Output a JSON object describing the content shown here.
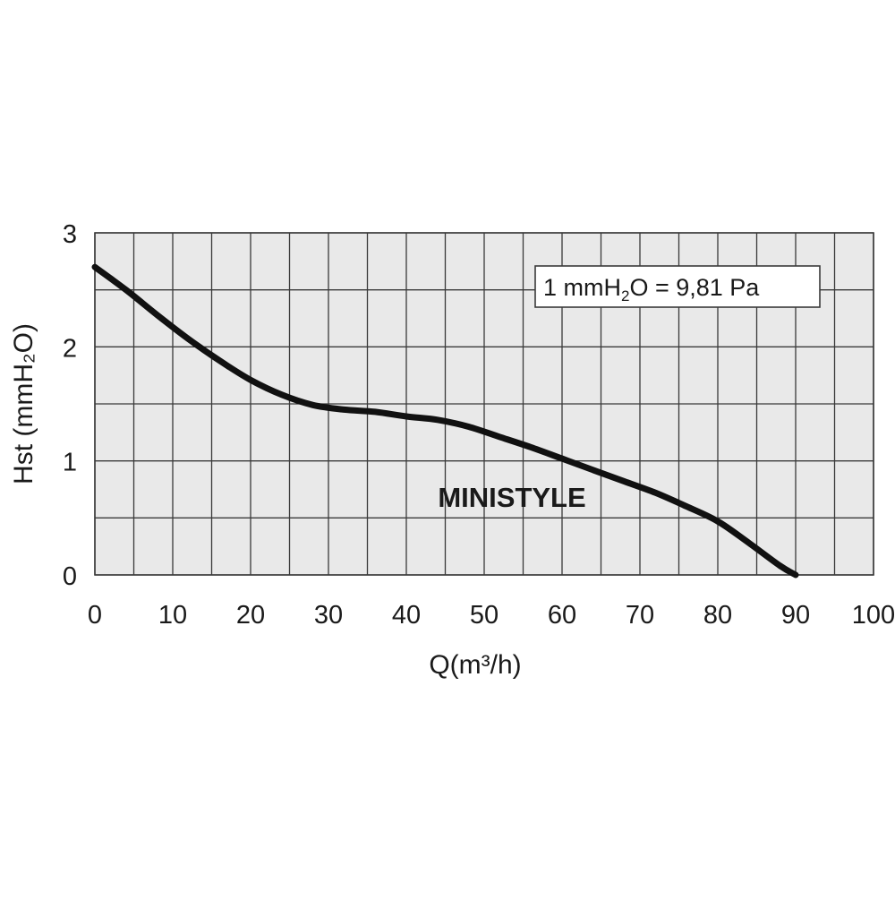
{
  "chart_data": {
    "type": "line",
    "title": "",
    "xlabel": "Q(m³/h)",
    "ylabel": "Hst (mmH₂O)",
    "xlim": [
      0,
      100
    ],
    "ylim": [
      0,
      3
    ],
    "xticks": [
      0,
      10,
      20,
      30,
      40,
      50,
      60,
      70,
      80,
      90,
      100
    ],
    "yticks": [
      0,
      1,
      2,
      3
    ],
    "xtick_labels": [
      "0",
      "10",
      "20",
      "30",
      "40",
      "50",
      "60",
      "70",
      "80",
      "90",
      "100"
    ],
    "ytick_labels": [
      "0",
      "1",
      "2",
      "3"
    ],
    "x_grid_step": 5,
    "y_grid_step": 0.5,
    "grid": true,
    "series": [
      {
        "name": "MINISTYLE",
        "x": [
          0,
          4,
          8,
          12,
          16,
          20,
          24,
          28,
          32,
          36,
          40,
          44,
          48,
          52,
          56,
          60,
          64,
          68,
          72,
          76,
          80,
          84,
          88,
          90
        ],
        "y": [
          2.7,
          2.5,
          2.28,
          2.07,
          1.88,
          1.71,
          1.58,
          1.49,
          1.45,
          1.43,
          1.39,
          1.36,
          1.3,
          1.21,
          1.12,
          1.02,
          0.92,
          0.82,
          0.72,
          0.6,
          0.47,
          0.28,
          0.08,
          0.0
        ]
      }
    ],
    "annotations": {
      "series_label": "MINISTYLE",
      "conversion_note": {
        "prefix": "1 mmH",
        "subscript": "2",
        "suffix": "O = 9,81 Pa"
      }
    },
    "colors": {
      "plot_background": "#e9e9e9",
      "grid": "#3a3a3a",
      "curve": "#111111",
      "text": "#1a1a1a"
    }
  }
}
